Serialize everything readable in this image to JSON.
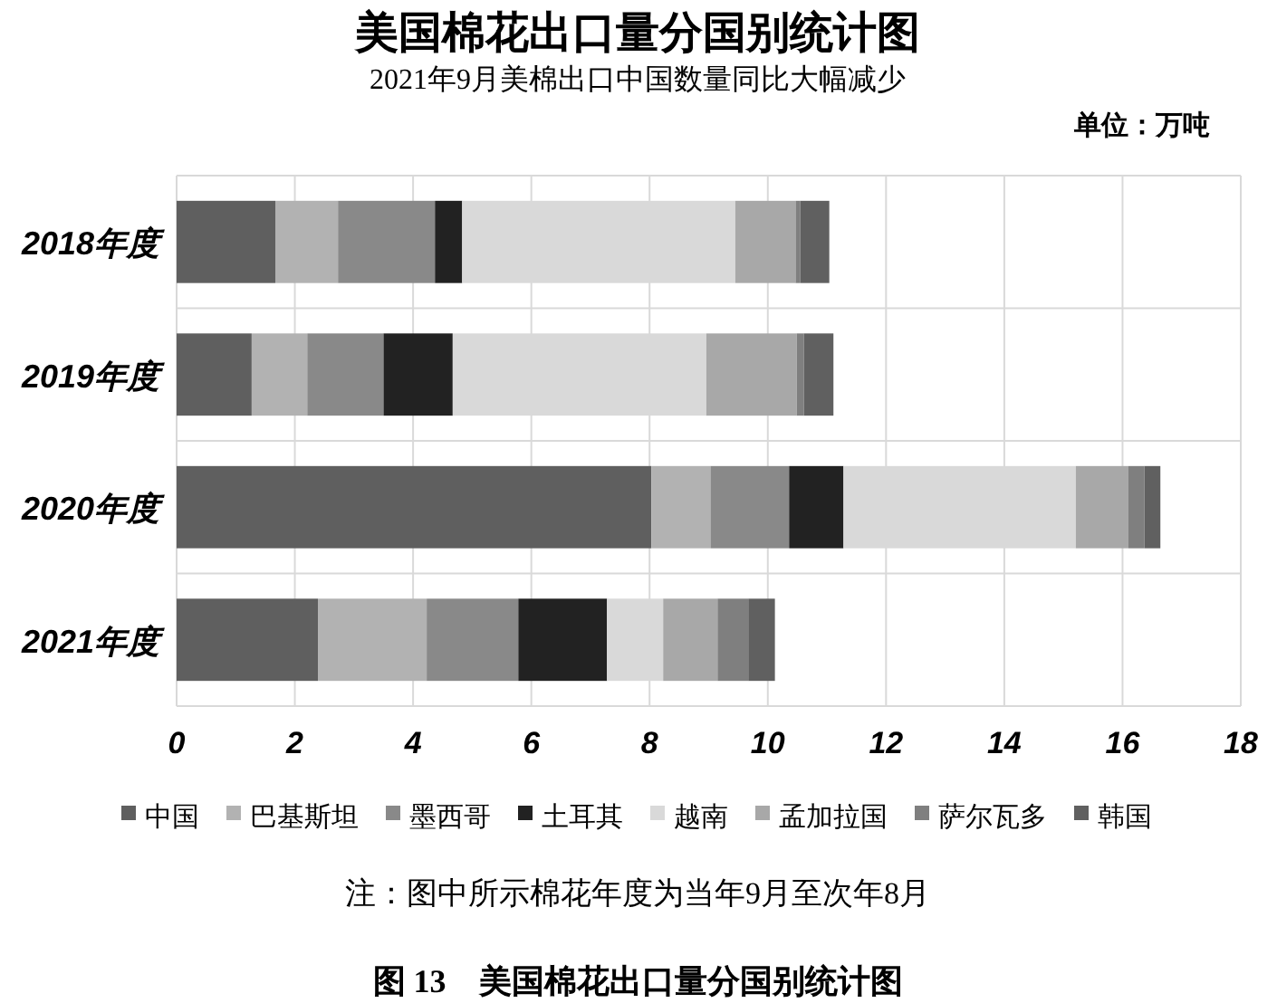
{
  "chart_data": {
    "type": "bar",
    "orientation": "horizontal",
    "stacked": true,
    "title": "美国棉花出口量分国别统计图",
    "subtitle": "2021年9月美棉出口中国数量同比大幅减少",
    "annotations": [
      "单位：万吨",
      "注：图中所示棉花年度为当年9月至次年8月",
      "图 13　美国棉花出口量分国别统计图"
    ],
    "categories": [
      "2018年度",
      "2019年度",
      "2020年度",
      "2021年度"
    ],
    "series": [
      {
        "name": "中国",
        "color": "#5f5f5f",
        "values": [
          1.67,
          1.27,
          8.03,
          2.39
        ]
      },
      {
        "name": "巴基斯坦",
        "color": "#b2b2b2",
        "values": [
          1.06,
          0.94,
          1.0,
          1.84
        ]
      },
      {
        "name": "墨西哥",
        "color": "#898989",
        "values": [
          1.64,
          1.29,
          1.33,
          1.55
        ]
      },
      {
        "name": "土耳其",
        "color": "#222222",
        "values": [
          0.46,
          1.17,
          0.92,
          1.5
        ]
      },
      {
        "name": "越南",
        "color": "#d9d9d9",
        "values": [
          4.62,
          4.29,
          3.93,
          0.95
        ]
      },
      {
        "name": "孟加拉国",
        "color": "#a8a8a8",
        "values": [
          1.02,
          1.53,
          0.89,
          0.92
        ]
      },
      {
        "name": "萨尔瓦多",
        "color": "#7f7f7f",
        "values": [
          0.08,
          0.12,
          0.27,
          0.52
        ]
      },
      {
        "name": "韩国",
        "color": "#606060",
        "values": [
          0.49,
          0.5,
          0.27,
          0.45
        ]
      }
    ],
    "xlim": [
      0,
      18
    ],
    "xticks": [
      0,
      2,
      4,
      6,
      8,
      10,
      12,
      14,
      16,
      18
    ],
    "grid": true,
    "legend": "bottom"
  }
}
